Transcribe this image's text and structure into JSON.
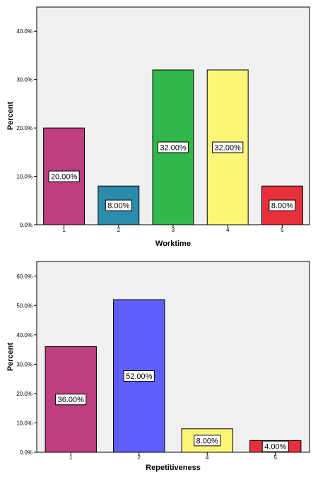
{
  "chart_data": [
    {
      "type": "bar",
      "title": "",
      "xlabel": "Worktime",
      "ylabel": "Percent",
      "categories": [
        "1",
        "2",
        "3",
        "4",
        "5"
      ],
      "values": [
        20.0,
        8.0,
        32.0,
        32.0,
        8.0
      ],
      "data_labels": [
        "20.00%",
        "8.00%",
        "32.00%",
        "32.00%",
        "8.00%"
      ],
      "colors": [
        "#bd3f7f",
        "#2a8bab",
        "#30b94a",
        "#fcf577",
        "#e8303a"
      ],
      "ylim": [
        0,
        45
      ],
      "yticks": [
        0,
        10,
        20,
        30,
        40
      ],
      "ytick_labels": [
        "0.0%",
        "10.0%",
        "20.0%",
        "30.0%",
        "40.0%"
      ],
      "plot_background": "#f0f0f0",
      "grid": false,
      "legend": "none"
    },
    {
      "type": "bar",
      "title": "",
      "xlabel": "Repetitiveness",
      "ylabel": "Percent",
      "categories": [
        "1",
        "2",
        "4",
        "5"
      ],
      "values": [
        36.0,
        52.0,
        8.0,
        4.0
      ],
      "data_labels": [
        "36.00%",
        "52.00%",
        "8.00%",
        "4.00%"
      ],
      "colors": [
        "#bd3f7f",
        "#5f5ffb",
        "#fcf577",
        "#e8303a"
      ],
      "ylim": [
        0,
        65
      ],
      "yticks": [
        0,
        10,
        20,
        30,
        40,
        50,
        60
      ],
      "ytick_labels": [
        "0.0%",
        "10.0%",
        "20.0%",
        "30.0%",
        "40.0%",
        "50.0%",
        "60.0%"
      ],
      "plot_background": "#f0f0f0",
      "grid": false,
      "legend": "none"
    }
  ]
}
